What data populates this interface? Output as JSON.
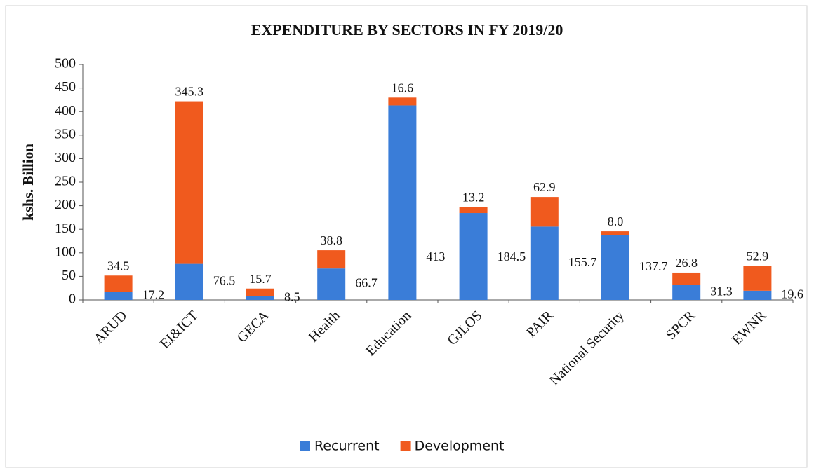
{
  "chart_data": {
    "type": "stacked_bar",
    "title": "EXPENDITURE BY SECTORS IN  FY 2019/20",
    "ylabel": "kshs. Billion",
    "categories": [
      "ARUD",
      "EI&ICT",
      "GECA",
      "Health",
      "Education",
      "GJLOS",
      "PAIR",
      "National Security",
      "SPCR",
      "EWNR"
    ],
    "series": [
      {
        "name": "Recurrent",
        "color": "#3a7dd8",
        "values": [
          17.2,
          76.5,
          8.5,
          66.7,
          413,
          184.5,
          155.7,
          137.7,
          31.3,
          19.6
        ]
      },
      {
        "name": "Development",
        "color": "#f05a1e",
        "values": [
          34.5,
          345.3,
          15.7,
          38.8,
          16.6,
          13.2,
          62.9,
          8.0,
          26.8,
          52.9
        ],
        "value_labels": [
          "34.5",
          "345.3",
          "15.7",
          "38.8",
          "16.6",
          "13.2",
          "62.9",
          "8.0",
          "26.8",
          "52.9"
        ]
      }
    ],
    "ylim": [
      0,
      500
    ],
    "yticks": [
      0,
      50,
      100,
      150,
      200,
      250,
      300,
      350,
      400,
      450,
      500
    ],
    "legend": "bottom"
  }
}
